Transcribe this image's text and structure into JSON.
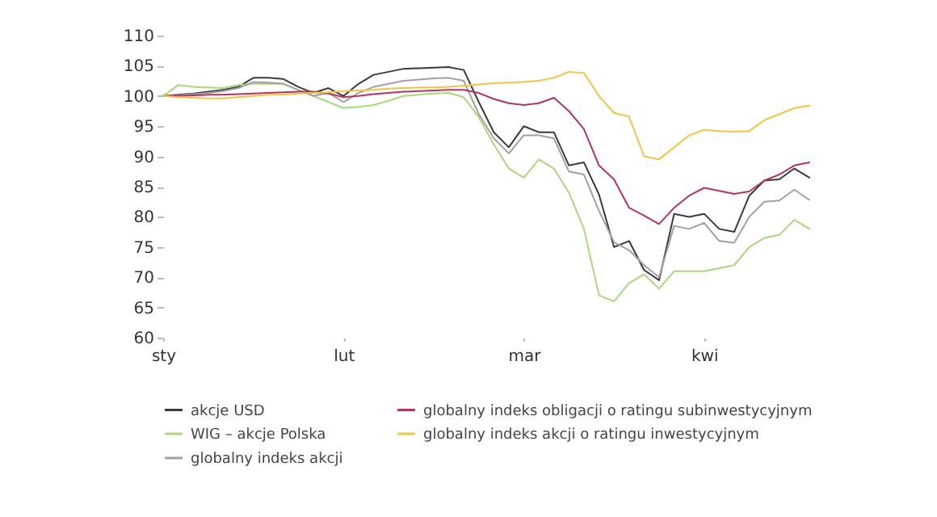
{
  "chart_data": {
    "type": "line",
    "categories": [
      "sty",
      null,
      null,
      null,
      null,
      null,
      null,
      null,
      null,
      null,
      null,
      null,
      "lut",
      null,
      null,
      null,
      null,
      null,
      null,
      null,
      null,
      null,
      null,
      null,
      "mar",
      null,
      null,
      null,
      null,
      null,
      null,
      null,
      null,
      null,
      null,
      null,
      "kwi",
      null,
      null,
      null,
      null,
      null,
      null,
      null
    ],
    "series": [
      {
        "name": "akcje USD",
        "color": "#3a3a3a",
        "values": [
          100,
          100.2,
          100.4,
          100.7,
          101,
          101.5,
          103,
          103,
          102.8,
          101.5,
          100.5,
          101.3,
          100,
          102,
          103.5,
          104,
          104.5,
          104.6,
          104.7,
          104.8,
          104.3,
          99,
          94,
          91.5,
          95,
          94,
          94,
          88.5,
          89,
          83.7,
          75,
          76,
          71.2,
          69.5,
          80.5,
          80,
          80.5,
          78,
          77.5,
          83.5,
          86,
          86.2,
          88,
          86.5
        ]
      },
      {
        "name": "WIG – akcje Polska",
        "color": "#a8d87a",
        "values": [
          100,
          101.8,
          101.5,
          101.4,
          101.3,
          101.8,
          102,
          102,
          102,
          101,
          100,
          99,
          98,
          98.2,
          98.5,
          99.2,
          100,
          100.2,
          100.4,
          100.5,
          99.8,
          96.5,
          92,
          88,
          86.5,
          89.5,
          88,
          84,
          78,
          67,
          66,
          69,
          70.5,
          68.1,
          71,
          71,
          71,
          71.5,
          72,
          75,
          76.5,
          77,
          79.5,
          78
        ]
      },
      {
        "name": "globalny indeks akcji",
        "color": "#a0a0a0",
        "values": [
          100,
          100.1,
          100.3,
          100.5,
          100.8,
          101.3,
          102.3,
          102.2,
          102,
          101,
          100,
          100.5,
          99,
          100.5,
          101.5,
          102,
          102.5,
          102.7,
          102.9,
          103,
          102.5,
          97,
          93,
          90.5,
          93.5,
          93.5,
          93,
          87.5,
          87,
          81,
          75.8,
          74.5,
          72,
          70,
          78.5,
          78,
          79,
          76,
          75.7,
          80,
          82.5,
          82.7,
          84.5,
          82.8
        ]
      },
      {
        "name": "globalny indeks obligacji o ratingu subinwestycyjnym",
        "color": "#b5345e",
        "values": [
          100,
          100,
          100.1,
          100.2,
          100.2,
          100.3,
          100.4,
          100.5,
          100.6,
          100.7,
          100.7,
          100.4,
          99.8,
          100,
          100.3,
          100.5,
          100.7,
          100.8,
          100.9,
          101,
          101,
          100.5,
          99.5,
          98.8,
          98.5,
          98.8,
          99.7,
          97.5,
          94.5,
          88.5,
          86.2,
          81.5,
          80.2,
          78.8,
          81.5,
          83.5,
          84.8,
          84.3,
          83.8,
          84.2,
          86,
          87,
          88.5,
          89
        ]
      },
      {
        "name": "globalny indeks akcji o ratingu inwestycyjnym",
        "color": "#f5c242",
        "values": [
          100,
          99.8,
          99.7,
          99.6,
          99.6,
          99.8,
          100,
          100.2,
          100.2,
          100.4,
          100.5,
          100.6,
          100.8,
          100.9,
          101,
          101.2,
          101.3,
          101.4,
          101.4,
          101.5,
          101.7,
          101.9,
          102.1,
          102.2,
          102.3,
          102.5,
          103,
          104,
          103.8,
          100,
          97.2,
          96.6,
          90,
          89.5,
          91.5,
          93.5,
          94.4,
          94.2,
          94.1,
          94.2,
          96,
          97,
          98,
          98.4
        ]
      }
    ],
    "ylim": [
      60,
      110
    ],
    "yticks": [
      60,
      65,
      70,
      75,
      80,
      85,
      90,
      95,
      100,
      105,
      110
    ],
    "legend": "bottom"
  }
}
